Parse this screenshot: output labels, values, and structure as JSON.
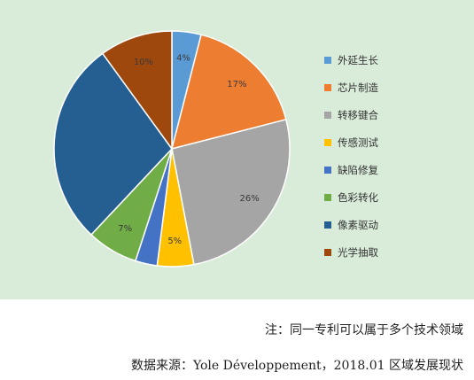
{
  "chart_data": {
    "type": "pie",
    "categories": [
      "外延生长",
      "芯片制造",
      "转移键合",
      "传感测试",
      "缺陷修复",
      "色彩转化",
      "像素驱动",
      "光学抽取"
    ],
    "values": [
      4,
      17,
      26,
      5,
      3,
      7,
      28,
      10
    ],
    "data_labels": [
      "4%",
      "17%",
      "26%",
      "5%",
      "",
      "7%",
      "",
      "10%"
    ],
    "colors": [
      "#5b9bd5",
      "#ed7d31",
      "#a5a5a5",
      "#ffc000",
      "#4472c4",
      "#70ad47",
      "#255e91",
      "#9e480e"
    ],
    "legend_position": "right"
  },
  "notes": {
    "line1": "注：同一专利可以属于多个技术领域",
    "line2": "数据来源：Yole Développement，2018.01 区域发展现状"
  }
}
